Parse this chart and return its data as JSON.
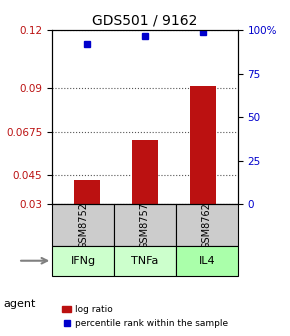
{
  "title": "GDS501 / 9162",
  "samples": [
    "GSM8752",
    "GSM8757",
    "GSM8762"
  ],
  "agents": [
    "IFNg",
    "TNFa",
    "IL4"
  ],
  "log_ratio": [
    0.0425,
    0.063,
    0.091
  ],
  "percentile_rank": [
    0.113,
    0.117,
    0.119
  ],
  "bar_color": "#bb1111",
  "dot_color": "#0000cc",
  "agent_colors": [
    "#ccffcc",
    "#ccffcc",
    "#88ff88"
  ],
  "sample_box_color": "#cccccc",
  "ylim_left": [
    0.03,
    0.12
  ],
  "ylim_right": [
    0,
    100
  ],
  "yticks_left": [
    0.03,
    0.045,
    0.0675,
    0.09,
    0.12
  ],
  "ytick_labels_left": [
    "0.03",
    "0.045",
    "0.0675",
    "0.09",
    "0.12"
  ],
  "yticks_right_vals": [
    0,
    25,
    50,
    75,
    100
  ],
  "ytick_labels_right": [
    "0",
    "25",
    "50",
    "75",
    "100%"
  ],
  "background_color": "#ffffff",
  "grid_color": "#555555",
  "legend_log_ratio": "log ratio",
  "legend_percentile": "percentile rank within the sample",
  "agent_label": "agent"
}
